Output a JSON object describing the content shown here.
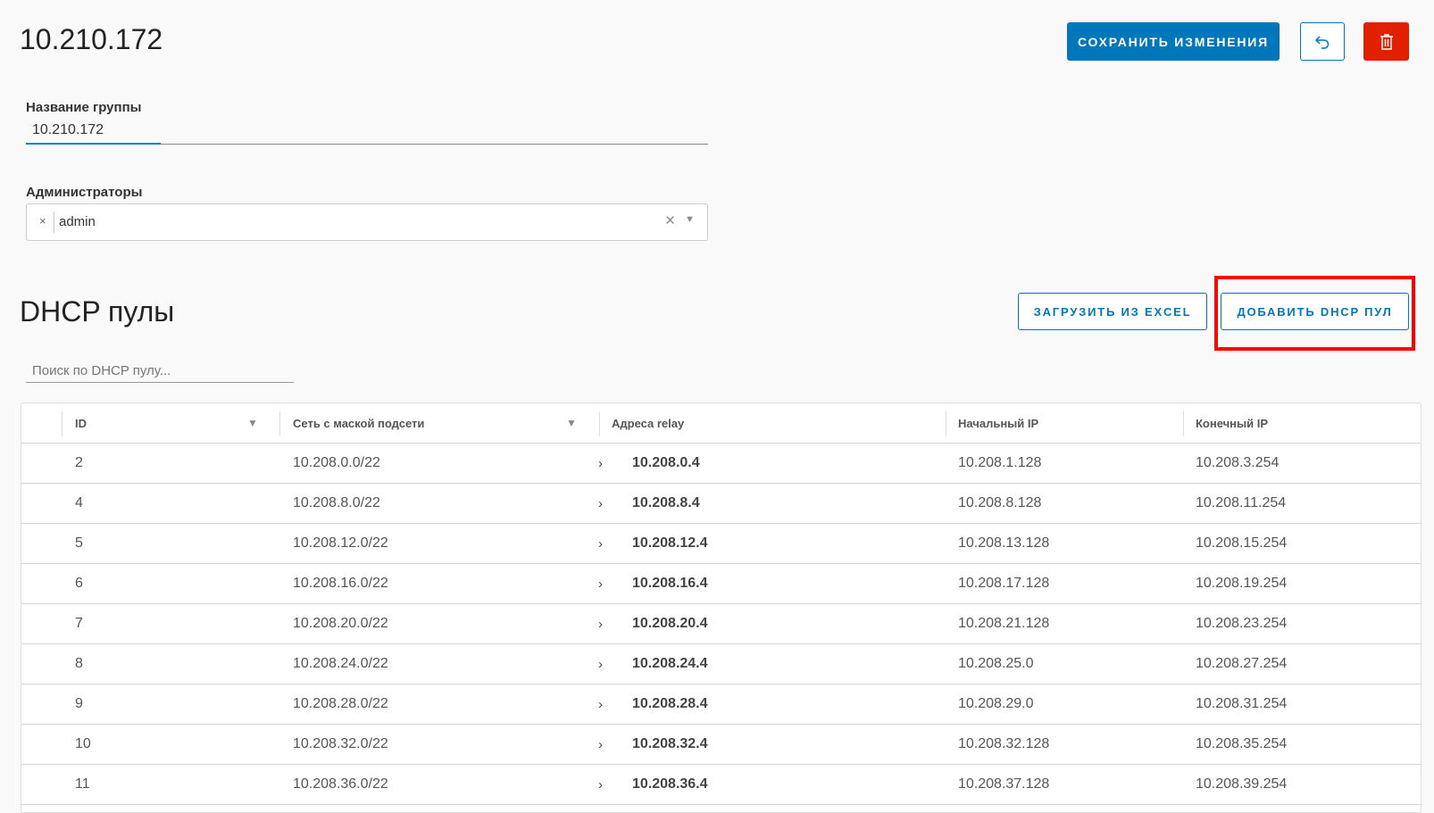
{
  "header": {
    "title": "10.210.172",
    "save_label": "СОХРАНИТЬ ИЗМЕНЕНИЯ",
    "undo_icon": "undo-icon",
    "delete_icon": "trash-icon"
  },
  "form": {
    "group_name_label": "Название группы",
    "group_name_value": "10.210.172",
    "admins_label": "Администраторы",
    "admins_tags": [
      "admin"
    ]
  },
  "dhcp": {
    "title": "DHCP пулы",
    "upload_label": "ЗАГРУЗИТЬ ИЗ EXCEL",
    "add_label": "ДОБАВИТЬ DHCP ПУЛ",
    "search_placeholder": "Поиск по DHCP пулу...",
    "highlight_color": "#ff0000",
    "columns": [
      "ID",
      "Сеть с маской подсети",
      "Адреса relay",
      "Начальный IP",
      "Конечный IP"
    ],
    "rows": [
      [
        "2",
        "10.208.0.0/22",
        "10.208.0.4",
        "10.208.1.128",
        "10.208.3.254"
      ],
      [
        "4",
        "10.208.8.0/22",
        "10.208.8.4",
        "10.208.8.128",
        "10.208.11.254"
      ],
      [
        "5",
        "10.208.12.0/22",
        "10.208.12.4",
        "10.208.13.128",
        "10.208.15.254"
      ],
      [
        "6",
        "10.208.16.0/22",
        "10.208.16.4",
        "10.208.17.128",
        "10.208.19.254"
      ],
      [
        "7",
        "10.208.20.0/22",
        "10.208.20.4",
        "10.208.21.128",
        "10.208.23.254"
      ],
      [
        "8",
        "10.208.24.0/22",
        "10.208.24.4",
        "10.208.25.0",
        "10.208.27.254"
      ],
      [
        "9",
        "10.208.28.0/22",
        "10.208.28.4",
        "10.208.29.0",
        "10.208.31.254"
      ],
      [
        "10",
        "10.208.32.0/22",
        "10.208.32.4",
        "10.208.32.128",
        "10.208.35.254"
      ],
      [
        "11",
        "10.208.36.0/22",
        "10.208.36.4",
        "10.208.37.128",
        "10.208.39.254"
      ]
    ]
  }
}
